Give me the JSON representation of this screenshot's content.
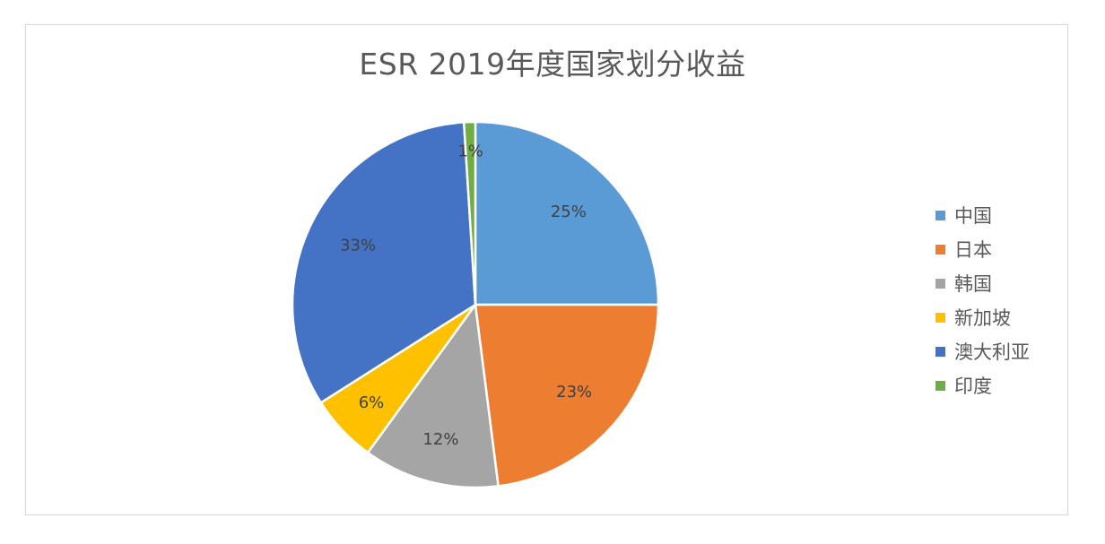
{
  "chart_data": {
    "type": "pie",
    "title": "ESR 2019年度国家划分收益",
    "categories": [
      "中国",
      "日本",
      "韩国",
      "新加坡",
      "澳大利亚",
      "印度"
    ],
    "values": [
      25,
      23,
      12,
      6,
      33,
      1
    ],
    "value_labels": [
      "25%",
      "23%",
      "12%",
      "6%",
      "33%",
      "1%"
    ],
    "colors": [
      "#5b9bd5",
      "#ed7d31",
      "#a5a5a5",
      "#ffc000",
      "#4472c4",
      "#70ad47"
    ],
    "start_angle": "12 o'clock, clockwise",
    "legend_position": "right"
  },
  "title": "ESR 2019年度国家划分收益",
  "legend": [
    {
      "label": "中国",
      "color": "#5b9bd5"
    },
    {
      "label": "日本",
      "color": "#ed7d31"
    },
    {
      "label": "韩国",
      "color": "#a5a5a5"
    },
    {
      "label": "新加坡",
      "color": "#ffc000"
    },
    {
      "label": "澳大利亚",
      "color": "#4472c4"
    },
    {
      "label": "印度",
      "color": "#70ad47"
    }
  ]
}
